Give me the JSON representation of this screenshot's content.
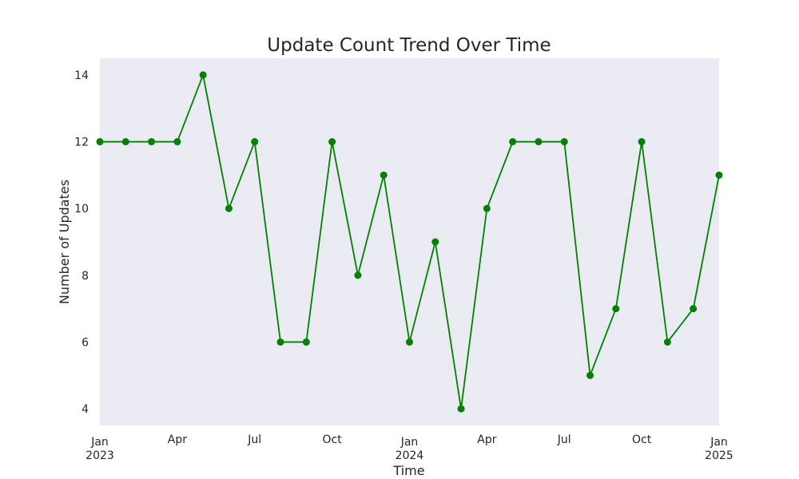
{
  "chart_data": {
    "type": "line",
    "title": "Update Count Trend Over Time",
    "xlabel": "Time",
    "ylabel": "Number of Updates",
    "x": [
      "2023-01",
      "2023-02",
      "2023-03",
      "2023-04",
      "2023-05",
      "2023-06",
      "2023-07",
      "2023-08",
      "2023-09",
      "2023-10",
      "2023-11",
      "2023-12",
      "2024-01",
      "2024-02",
      "2024-03",
      "2024-04",
      "2024-05",
      "2024-06",
      "2024-07",
      "2024-08",
      "2024-09",
      "2024-10",
      "2024-11",
      "2024-12",
      "2025-01"
    ],
    "series": [
      {
        "values": [
          12,
          12,
          12,
          12,
          14,
          10,
          12,
          6,
          6,
          12,
          8,
          11,
          6,
          9,
          4,
          10,
          12,
          12,
          12,
          5,
          7,
          12,
          6,
          7,
          11
        ]
      }
    ],
    "xlim": [
      "2023-01",
      "2025-01"
    ],
    "ylim": [
      3.5,
      14.5
    ],
    "yticks": [
      4,
      6,
      8,
      10,
      12,
      14
    ],
    "xticks": [
      {
        "at": "2023-01",
        "label": "Jan",
        "sublabel": "2023"
      },
      {
        "at": "2023-04",
        "label": "Apr",
        "sublabel": ""
      },
      {
        "at": "2023-07",
        "label": "Jul",
        "sublabel": ""
      },
      {
        "at": "2023-10",
        "label": "Oct",
        "sublabel": ""
      },
      {
        "at": "2024-01",
        "label": "Jan",
        "sublabel": "2024"
      },
      {
        "at": "2024-04",
        "label": "Apr",
        "sublabel": ""
      },
      {
        "at": "2024-07",
        "label": "Jul",
        "sublabel": ""
      },
      {
        "at": "2024-10",
        "label": "Oct",
        "sublabel": ""
      },
      {
        "at": "2025-01",
        "label": "Jan",
        "sublabel": "2025"
      }
    ],
    "grid": false,
    "line_color": "#008000",
    "background_color": "#eaeaf2"
  }
}
